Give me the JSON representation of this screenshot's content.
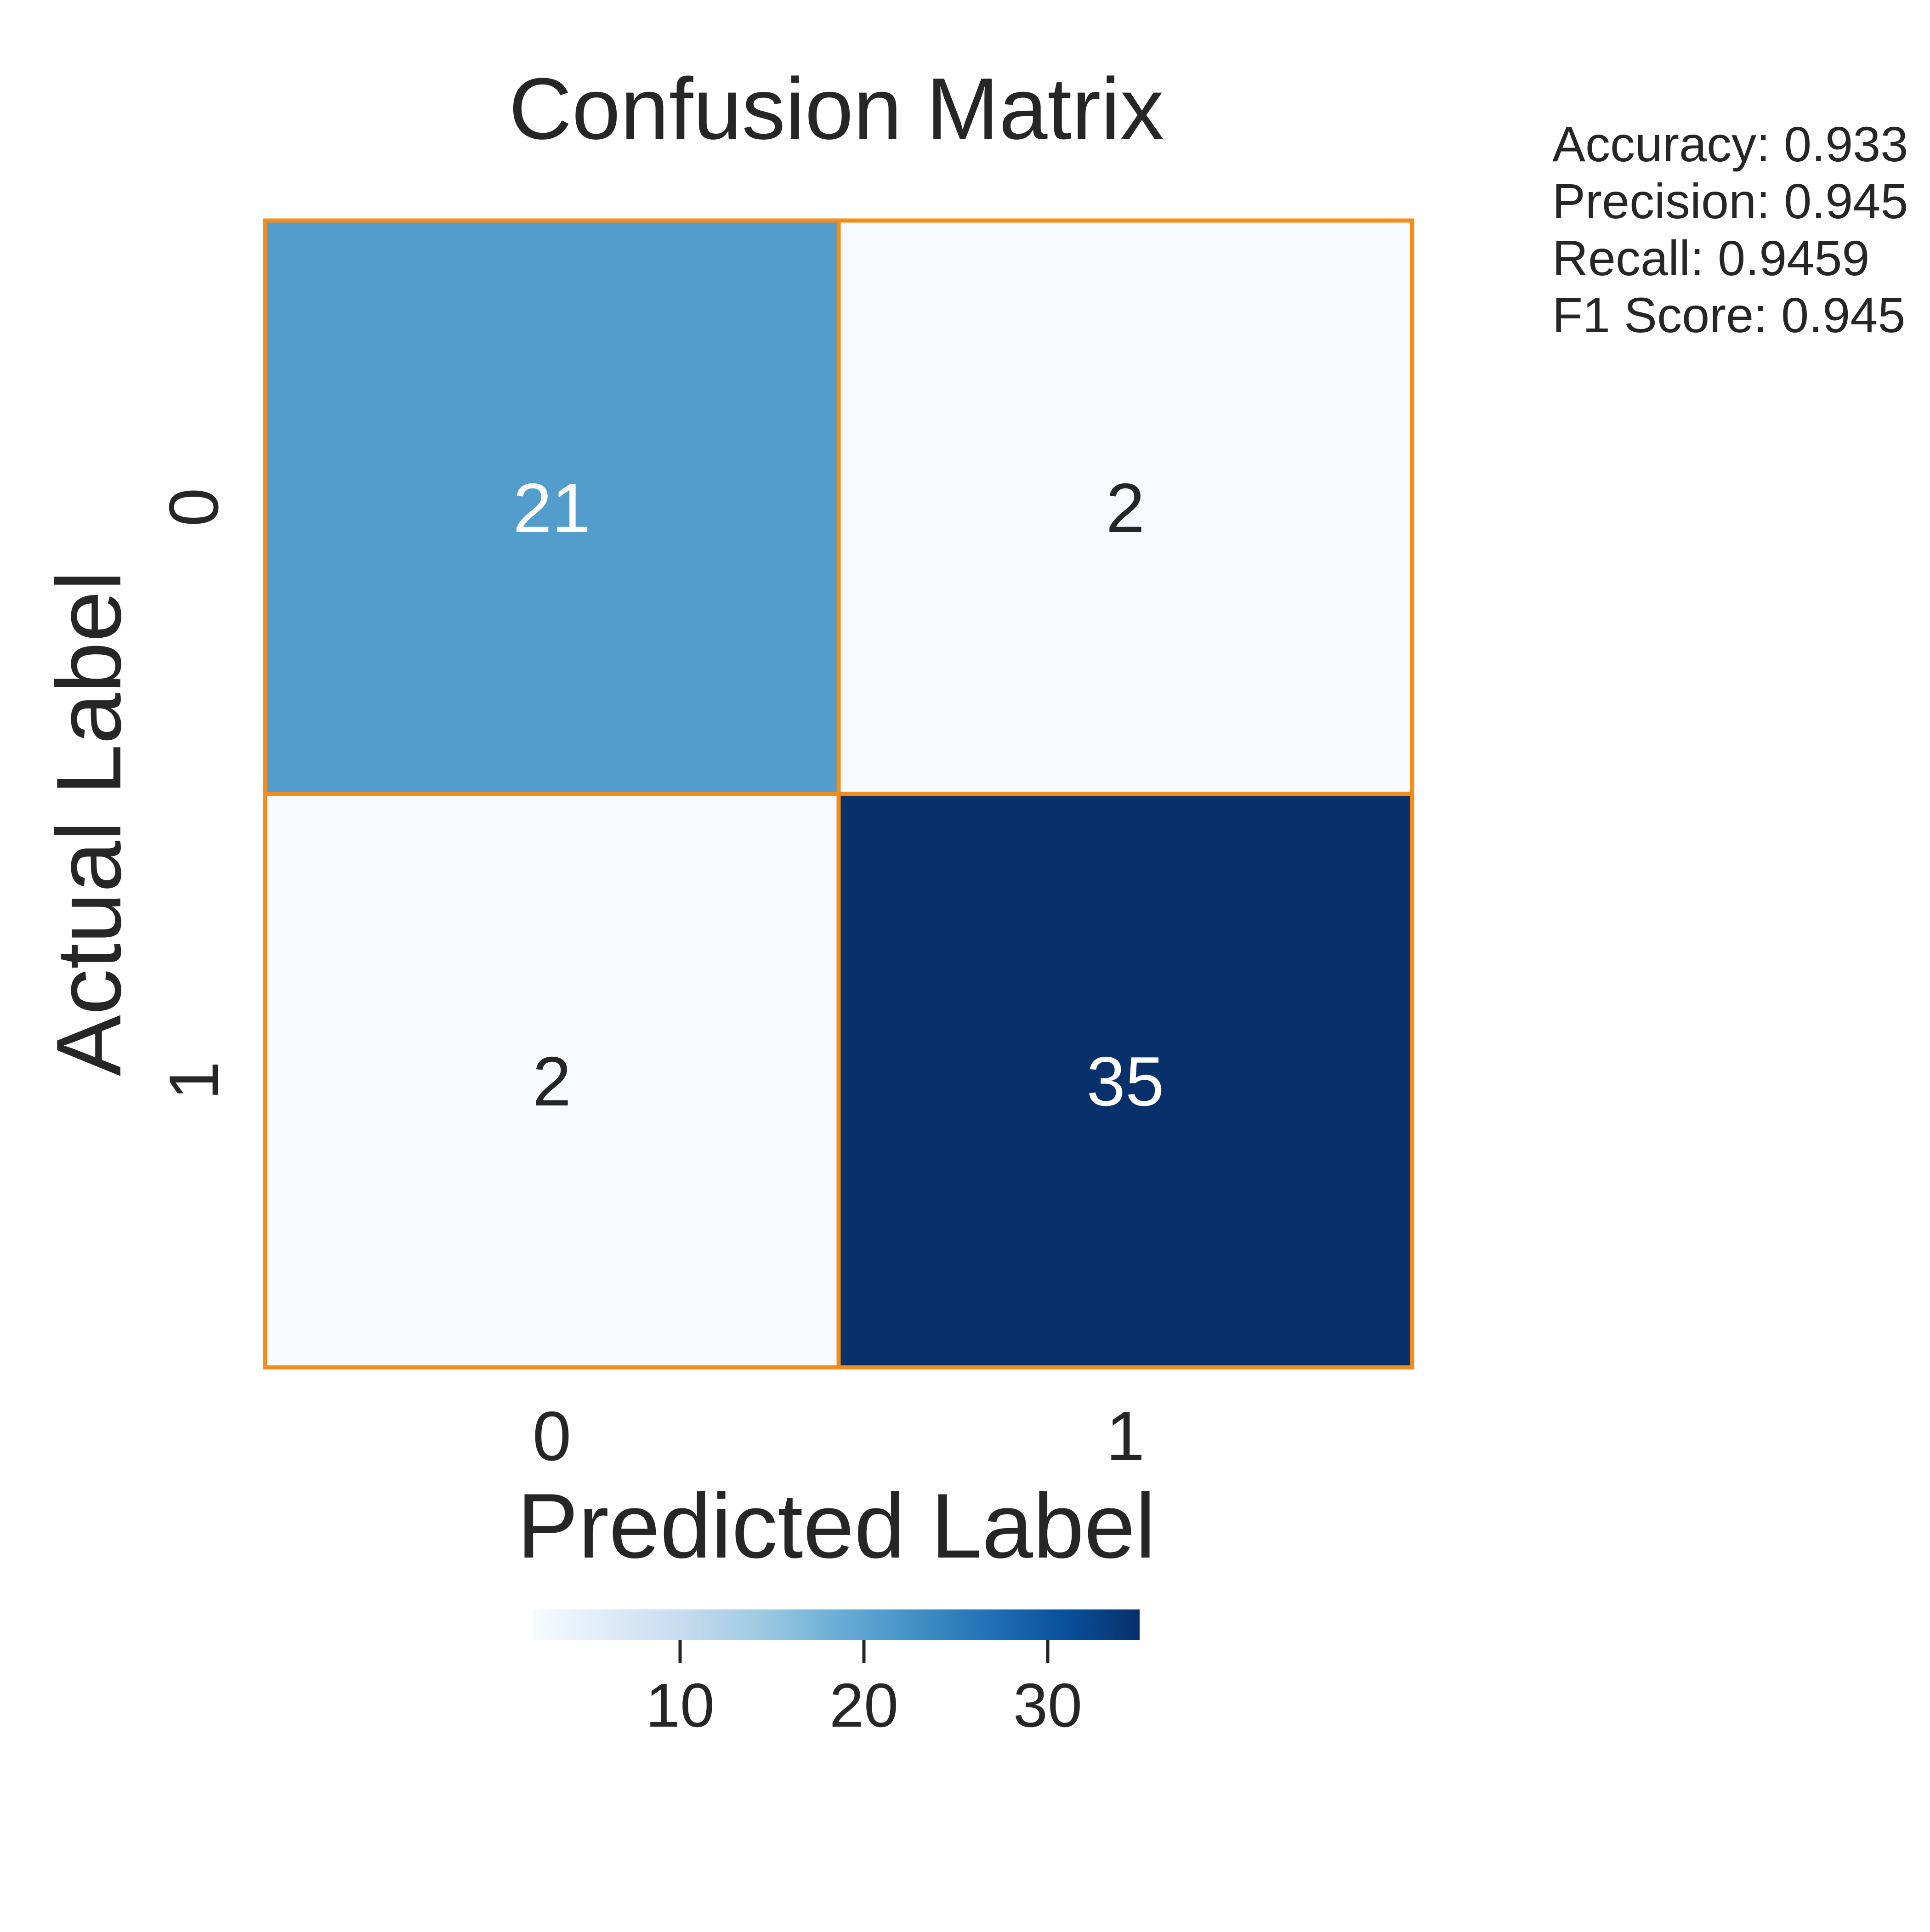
{
  "chart_data": {
    "type": "heatmap",
    "title": "Confusion Matrix",
    "xlabel": "Predicted Label",
    "ylabel": "Actual Label",
    "x_tick_labels": [
      "0",
      "1"
    ],
    "y_tick_labels": [
      "0",
      "1"
    ],
    "matrix": [
      [
        21,
        2
      ],
      [
        2,
        35
      ]
    ],
    "colormap": "Blues",
    "color_range": [
      2,
      35
    ],
    "cell_border_color": "#f28c1a",
    "low_color": "#f7fbff",
    "high_color": "#08306b",
    "colorbar": {
      "orientation": "horizontal",
      "placement": "below",
      "ticks": [
        10,
        20,
        30
      ],
      "tick_labels": [
        "10",
        "20",
        "30"
      ]
    },
    "annotations": [
      "Accuracy: 0.933",
      "Precision: 0.945",
      "Recall: 0.9459",
      "F1 Score: 0.945"
    ]
  }
}
